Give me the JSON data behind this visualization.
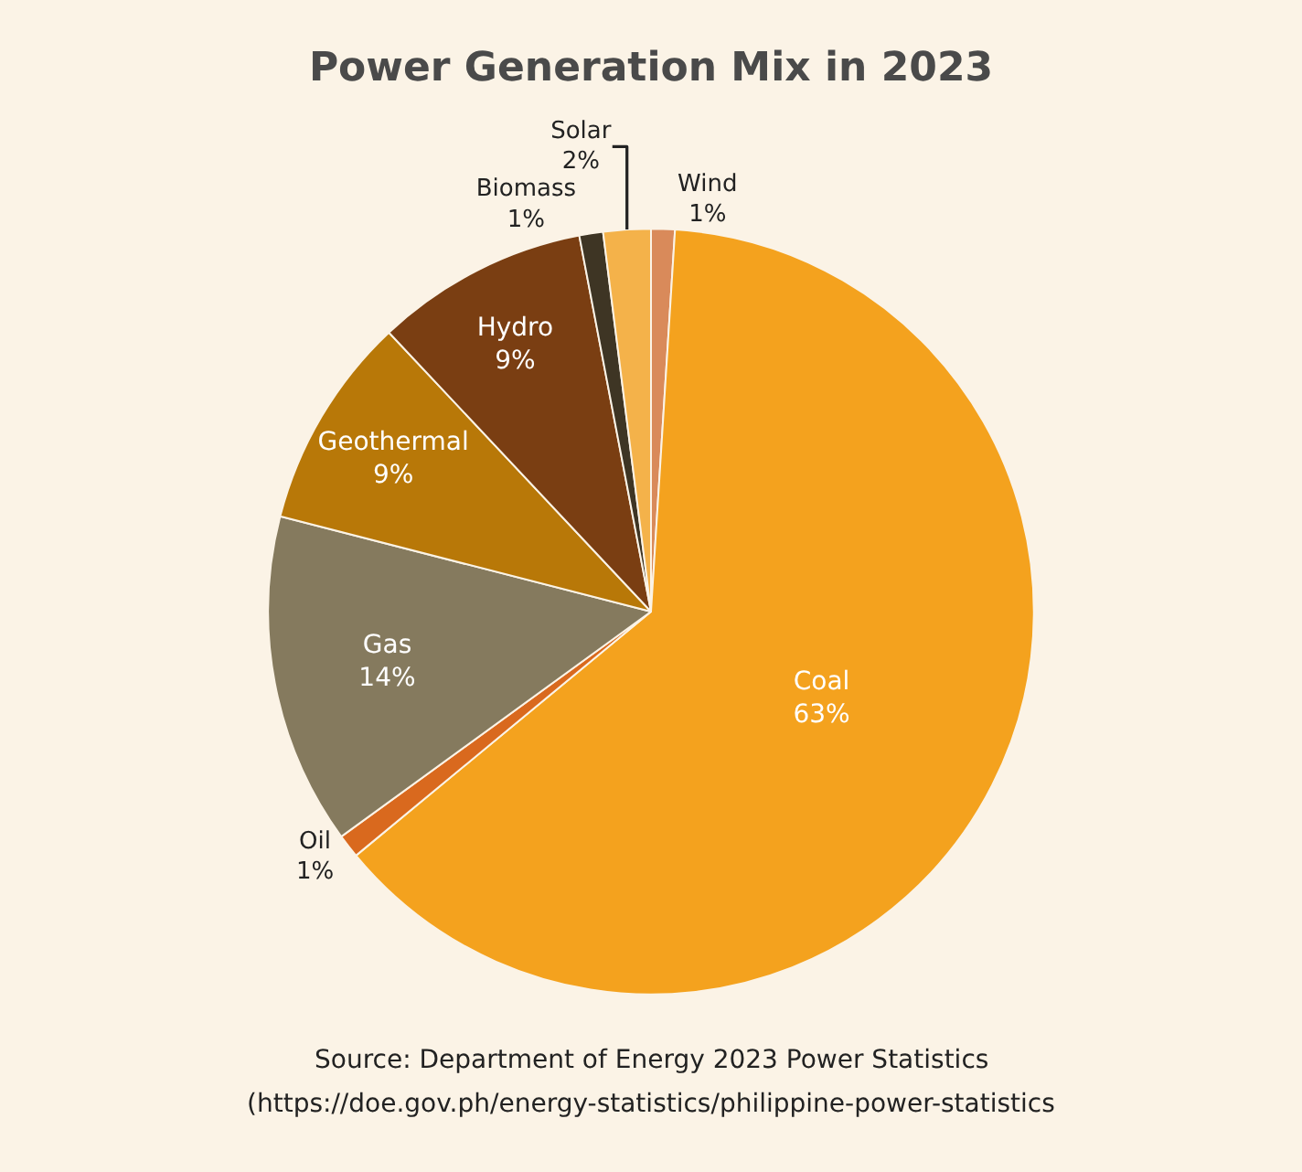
{
  "chart_data": {
    "type": "pie",
    "title": "Power Generation Mix in 2023",
    "categories": [
      "Wind",
      "Coal",
      "Oil",
      "Gas",
      "Geothermal",
      "Hydro",
      "Biomass",
      "Solar"
    ],
    "values": [
      1,
      63,
      1,
      14,
      9,
      9,
      1,
      2
    ],
    "value_labels": [
      "1%",
      "63%",
      "1%",
      "14%",
      "9%",
      "9%",
      "1%",
      "2%"
    ],
    "colors": [
      "#d98a5a",
      "#f4a21e",
      "#d9691e",
      "#857a5e",
      "#b87808",
      "#7a3e12",
      "#3e3524",
      "#f4b24a"
    ],
    "legend": false,
    "annotations": [
      "Source: Department of Energy 2023 Power Statistics",
      "(https://doe.gov.ph/energy-statistics/philippine-power-statistics"
    ]
  }
}
